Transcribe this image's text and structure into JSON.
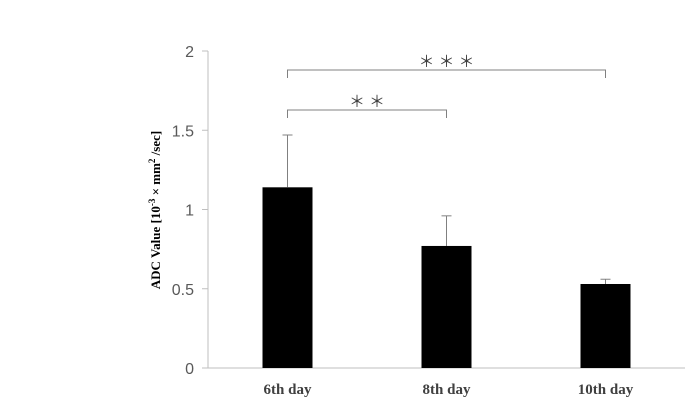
{
  "chart_data": {
    "type": "bar",
    "categories": [
      "6th day",
      "8th day",
      "10th day"
    ],
    "values": [
      1.14,
      0.77,
      0.53
    ],
    "error_upper": [
      0.33,
      0.19,
      0.03
    ],
    "ylabel": "ADC Value [10⁻³ × mm² /sec]",
    "ylabel_parts": {
      "prefix": "ADC Value [10",
      "exp1": "-3",
      "mid": " × mm",
      "exp2": "2",
      "suffix": " /sec]"
    },
    "ylim": [
      0,
      2
    ],
    "yticks": [
      0,
      0.5,
      1,
      1.5,
      2
    ],
    "ytick_labels": [
      "0",
      "0.5",
      "1",
      "1.5",
      "2"
    ],
    "bar_color": "#000000",
    "axis_color": "#bfbfbf",
    "significance": [
      {
        "from": 0,
        "to": 1,
        "label": "＊＊"
      },
      {
        "from": 0,
        "to": 2,
        "label": "＊＊＊"
      }
    ],
    "grid": false,
    "legend": "none"
  }
}
